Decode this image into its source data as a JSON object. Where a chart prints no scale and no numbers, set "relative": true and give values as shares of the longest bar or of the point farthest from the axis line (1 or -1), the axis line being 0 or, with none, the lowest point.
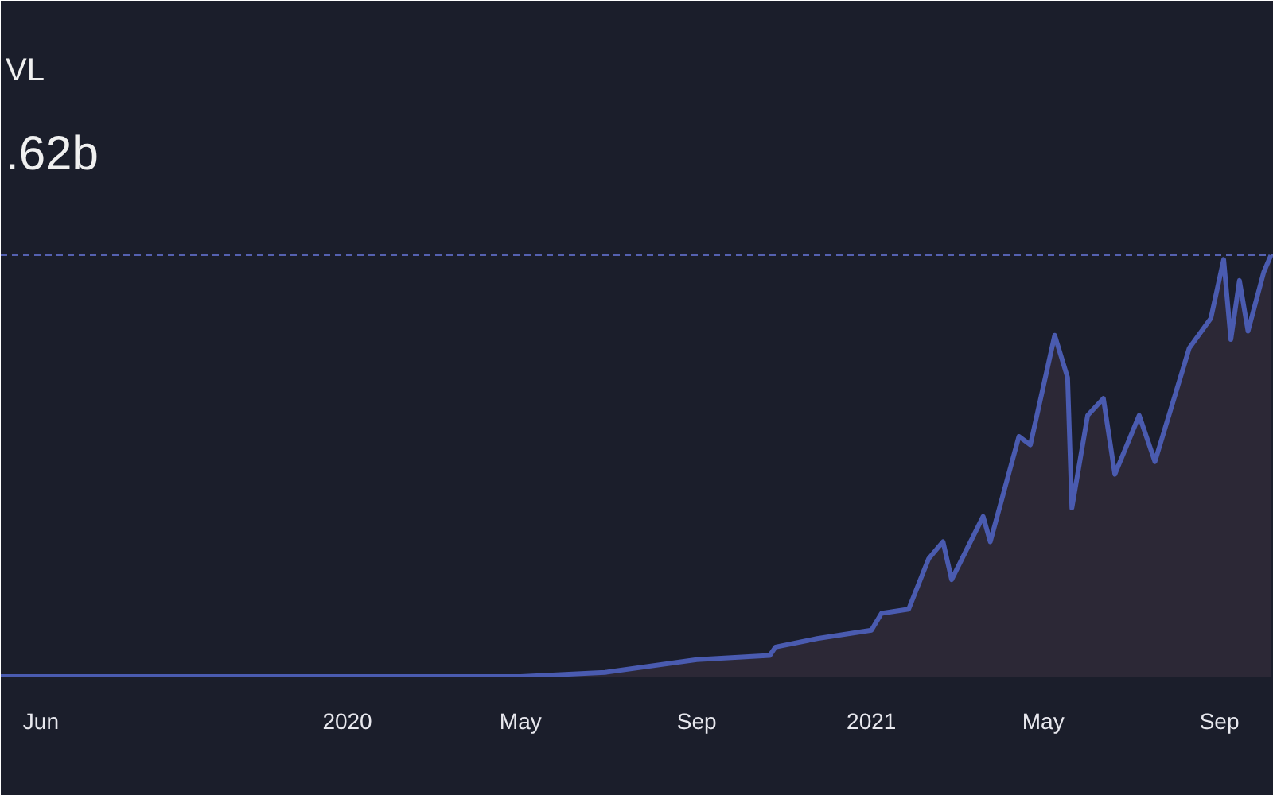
{
  "chart_data": {
    "type": "area",
    "title": "VL",
    "subtitle": ".62b",
    "relative": true,
    "grid": false,
    "line_style": "solid",
    "marker": "none",
    "xlim": [
      "2019-05-04",
      "2021-10-09"
    ],
    "xticks": [
      {
        "value": "2019-06-01",
        "label": "Jun"
      },
      {
        "value": "2020-01-01",
        "label": "2020"
      },
      {
        "value": "2020-05-01",
        "label": "May"
      },
      {
        "value": "2020-09-01",
        "label": "Sep"
      },
      {
        "value": "2021-01-01",
        "label": "2021"
      },
      {
        "value": "2021-05-01",
        "label": "May"
      },
      {
        "value": "2021-09-01",
        "label": "Sep"
      }
    ],
    "ref_lines": [
      {
        "axis": "y",
        "value": 1,
        "label": null,
        "color": "#5561b0",
        "line_style": "dashed"
      }
    ],
    "series": [
      {
        "color": "#4a5bb0",
        "x": [
          "2019-05-04",
          "2020-05-01",
          "2020-06-29",
          "2020-09-01",
          "2020-10-22",
          "2020-10-26",
          "2020-11-24",
          "2021-01-01",
          "2021-01-08",
          "2021-01-27",
          "2021-02-10",
          "2021-02-20",
          "2021-02-26",
          "2021-03-20",
          "2021-03-25",
          "2021-04-14",
          "2021-04-22",
          "2021-05-09",
          "2021-05-18",
          "2021-05-21",
          "2021-06-01",
          "2021-06-12",
          "2021-06-20",
          "2021-07-07",
          "2021-07-18",
          "2021-08-11",
          "2021-08-26",
          "2021-09-04",
          "2021-09-09",
          "2021-09-15",
          "2021-09-21",
          "2021-10-02",
          "2021-10-07"
        ],
        "values": [
          0,
          0,
          0.01,
          0.04,
          0.05,
          0.07,
          0.09,
          0.11,
          0.15,
          0.16,
          0.28,
          0.32,
          0.23,
          0.38,
          0.32,
          0.57,
          0.55,
          0.81,
          0.71,
          0.4,
          0.62,
          0.66,
          0.48,
          0.62,
          0.51,
          0.78,
          0.85,
          0.99,
          0.8,
          0.94,
          0.82,
          0.96,
          1.0
        ]
      }
    ]
  }
}
